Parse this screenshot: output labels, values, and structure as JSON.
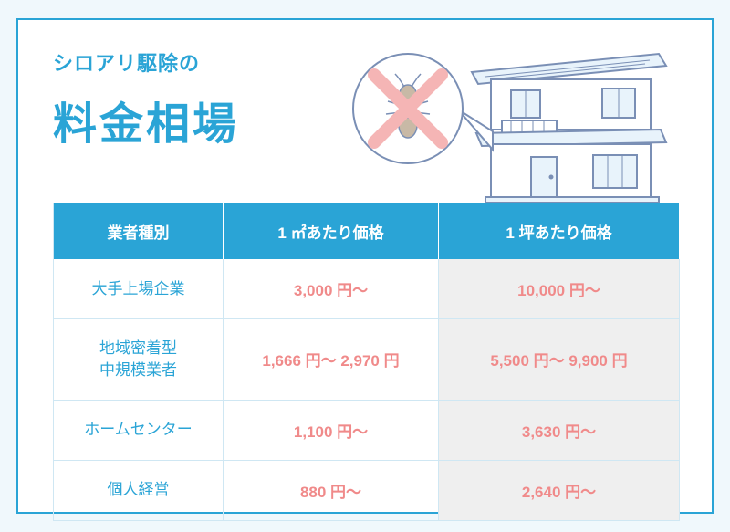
{
  "colors": {
    "page_bg": "#f0f8fc",
    "card_bg": "#ffffff",
    "primary": "#2aa4d6",
    "price": "#f08a8a",
    "border": "#cfe7f3",
    "alt_row": "#efefef",
    "illustration_stroke": "#7a8fb5",
    "illustration_fill": "#e8f3fb",
    "termite_body": "#c8b9a6"
  },
  "typography": {
    "title_small_size": 22,
    "title_large_size": 48,
    "th_size": 17,
    "td_size": 17
  },
  "title": {
    "small": "シロアリ駆除の",
    "large": "料金相場"
  },
  "table": {
    "columns": [
      "業者種別",
      "1 ㎡あたり価格",
      "1 坪あたり価格"
    ],
    "rows": [
      {
        "category": "大手上場企業",
        "per_m2": "3,000 円〜",
        "per_tsubo": "10,000 円〜"
      },
      {
        "category": "地域密着型\n中規模業者",
        "per_m2": "1,666 円〜 2,970 円",
        "per_tsubo": "5,500 円〜 9,900 円"
      },
      {
        "category": "ホームセンター",
        "per_m2": "1,100 円〜",
        "per_tsubo": "3,630 円〜"
      },
      {
        "category": "個人経営",
        "per_m2": "880 円〜",
        "per_tsubo": "2,640 円〜"
      }
    ]
  }
}
